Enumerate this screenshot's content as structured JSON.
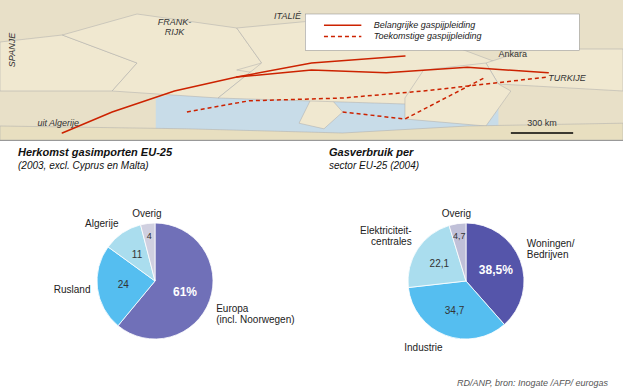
{
  "chart_data": [
    {
      "type": "map",
      "color": "#e8e0c8",
      "annotations": [
        "uit Algerije",
        "Ankara",
        "TURKIJE",
        "SPANJE",
        "FRANK-\nRIJK",
        "ITALIÉ",
        "300 km"
      ],
      "series": [
        {
          "name": "Belangrijke gaspijpleiding",
          "color": "#cc2200",
          "line_style": "solid"
        },
        {
          "name": "Toekomstige gaspijpleiding",
          "color": "#cc2200",
          "line_style": "dashed"
        }
      ]
    },
    {
      "type": "pie",
      "title": "Herkomst gasimporten EU-25",
      "subtitle": "(2003, excl. Cyprus en Malta)",
      "categories": [
        "Europa\n(incl. Noorwegen)",
        "Rusland",
        "Algerije",
        "Overig"
      ],
      "values": [
        61,
        24,
        11,
        4
      ],
      "value_labels": [
        "61%",
        "24",
        "11",
        "4"
      ],
      "colors": [
        "#7070b8",
        "#55bef0",
        "#aaddee",
        "#d0d0e0"
      ],
      "data_labels": true
    },
    {
      "type": "pie",
      "title": "Gasverbruik per",
      "subtitle": "sector EU-25 (2004)",
      "categories": [
        "Woningen/\nBedrijven",
        "Industrie",
        "Elektriciteit-\ncentrales",
        "Overig"
      ],
      "values": [
        38.5,
        34.7,
        22.1,
        4.7
      ],
      "value_labels": [
        "38,5%",
        "34,7",
        "22,1",
        "4,7"
      ],
      "colors": [
        "#5555aa",
        "#55bef0",
        "#aaddee",
        "#c0c0d8"
      ],
      "data_labels": true,
      "annotations": [
        "RD/ANP, bron: Inogate /AFP/ eurogas"
      ]
    }
  ]
}
